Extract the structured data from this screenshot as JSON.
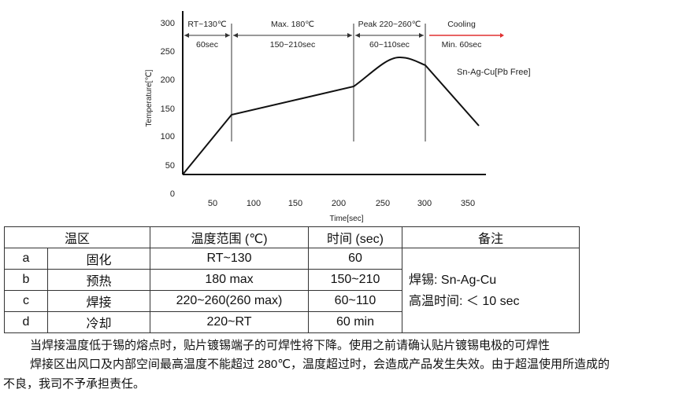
{
  "figure": {
    "ylabel": "Temperature[℃]",
    "xlabel": "Time[sec]",
    "yticks": [
      "300",
      "250",
      "200",
      "150",
      "100",
      "50",
      "0"
    ],
    "xticks": [
      "50",
      "100",
      "150",
      "200",
      "250",
      "300",
      "350"
    ],
    "zones": [
      {
        "top": "RT~130℃",
        "bottom": "60sec"
      },
      {
        "top": "Max. 180℃",
        "bottom": "150~210sec"
      },
      {
        "top": "Peak 220~260℃",
        "bottom": "60~110sec"
      },
      {
        "top": "Cooling",
        "bottom": "Min. 60sec"
      }
    ],
    "legend": "Sn-Ag-Cu[Pb Free]",
    "arrow_color": "#e03030"
  },
  "table": {
    "headers": [
      "温区",
      "温度范围 (℃)",
      "时间 (sec)",
      "备注"
    ],
    "rows": [
      [
        "a",
        "固化",
        "RT~130",
        "60"
      ],
      [
        "b",
        "预热",
        "180 max",
        "150~210"
      ],
      [
        "c",
        "焊接",
        "220~260(260 max)",
        "60~110"
      ],
      [
        "d",
        "冷却",
        "220~RT",
        "60 min"
      ]
    ],
    "note1": "焊锡: Sn-Ag-Cu",
    "note2": "高温时间: ＜ 10 sec"
  },
  "text": {
    "line1": "当焊接温度低于锡的熔点时，贴片镀锡端子的可焊性将下降。使用之前请确认贴片镀锡电极的可焊性",
    "line2": "焊接区出风口及内部空间最高温度不能超过 280℃，温度超过时，会造成产品发生失效。由于超温使用所造成的",
    "line3": "不良，我司不予承担责任。"
  }
}
